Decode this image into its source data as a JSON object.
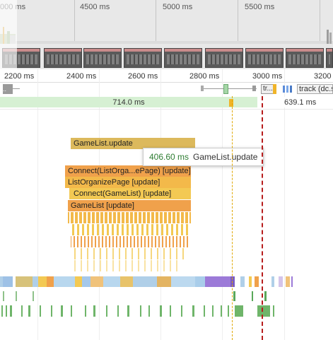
{
  "overview": {
    "ticks": [
      "000 ms",
      "4500 ms",
      "5000 ms",
      "5500 ms"
    ]
  },
  "ruler": {
    "ticks": [
      "2200 ms",
      "2400 ms",
      "2600 ms",
      "2800 ms",
      "3000 ms",
      "3200"
    ]
  },
  "network": {
    "left_stub": "..",
    "item_tr": "tr...",
    "item_track": "track (dc.s"
  },
  "frames": {
    "first": "714.0 ms",
    "second": "639.1 ms"
  },
  "flame": {
    "top": "GameList.update",
    "connect_outer": "Connect(ListOrga...ePage) [update]",
    "list_organize": "ListOrganizePage [update]",
    "connect_inner": "Connect(GameList) [update]",
    "gamelist": "GameList [update]"
  },
  "tooltip": {
    "duration": "406.60 ms",
    "name": "GameList.update"
  },
  "colors": {
    "frame_green": "#d6f0d3",
    "flame_gold": "#dcb95c",
    "flame_orange": "#f0a14b",
    "flame_yellow": "#f3c953",
    "marker_gold": "#e0a800",
    "marker_red": "#b71c1c"
  }
}
